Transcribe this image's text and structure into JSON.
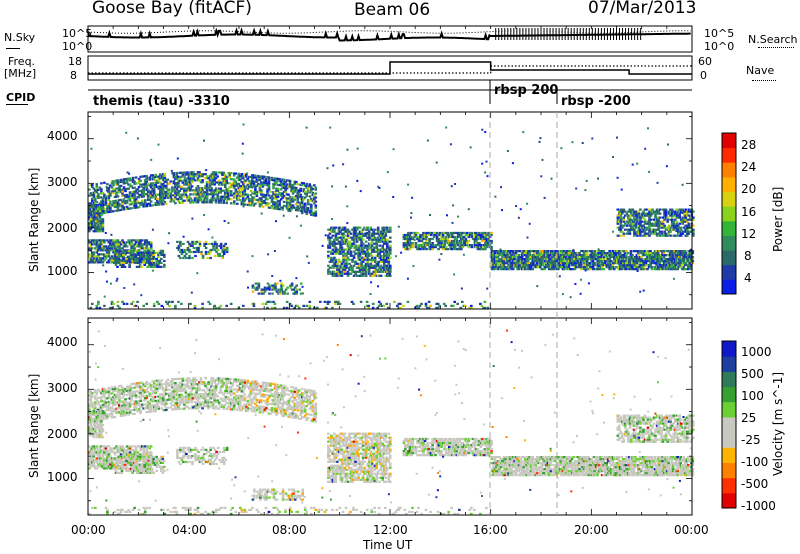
{
  "header": {
    "left": "Goose Bay (fitACF)",
    "center": "Beam 06",
    "right": "07/Mar/2013"
  },
  "top_panels": {
    "nsky_label": "N.Sky",
    "nsky_ticks": [
      "10^5",
      "10^0"
    ],
    "nsearch_label": "N.Search",
    "nsearch_ticks": [
      "10^5",
      "10^0"
    ],
    "freq_label": "Freq.",
    "freq_unit": "[MHz]",
    "freq_ticks": [
      "18",
      "8"
    ],
    "nave_label": "Nave",
    "nave_ticks": [
      "60",
      "0"
    ],
    "cpid_label": "CPID",
    "cpid_segments": [
      "themis (tau) -3310",
      "rbsp 200",
      "rbsp -200"
    ]
  },
  "colors": {
    "power_scale": [
      "#0a1ee6",
      "#1f3ba8",
      "#2c6a6a",
      "#2f8c5c",
      "#33b53a",
      "#8ad21c",
      "#d7d20f",
      "#ffb000",
      "#ff8000",
      "#ff2a00",
      "#e00000"
    ],
    "velocity_scale": [
      "#1018c8",
      "#1f3fa0",
      "#2f7a5a",
      "#37a032",
      "#6ccf34",
      "#c8c8c0",
      "#c8c8c0",
      "#ffb400",
      "#ff8000",
      "#ff3000",
      "#e00000"
    ]
  },
  "chart_data": [
    {
      "type": "heatmap",
      "ylabel": "Slant Range [km]",
      "xlim": [
        "00:00",
        "24:00"
      ],
      "ylim": [
        180,
        4600
      ],
      "y_ticks": [
        "1000",
        "2000",
        "3000",
        "4000"
      ],
      "x_ticks": [
        "00:00",
        "04:00",
        "08:00",
        "12:00",
        "16:00",
        "20:00",
        "00:00"
      ],
      "colorbar": {
        "label": "Power [dB]",
        "ticks": [
          "4",
          "8",
          "12",
          "16",
          "20",
          "24",
          "28"
        ],
        "range": [
          0,
          30
        ]
      }
    },
    {
      "type": "heatmap",
      "ylabel": "Slant Range [km]",
      "xlabel": "Time UT",
      "xlim": [
        "00:00",
        "24:00"
      ],
      "ylim": [
        180,
        4600
      ],
      "y_ticks": [
        "1000",
        "2000",
        "3000",
        "4000"
      ],
      "x_ticks": [
        "00:00",
        "04:00",
        "08:00",
        "12:00",
        "16:00",
        "20:00",
        "00:00"
      ],
      "colorbar": {
        "label": "Velocity [m s^-1]",
        "ticks": [
          "1000",
          "500",
          "100",
          "25",
          "-25",
          "-100",
          "-500",
          "-1000"
        ]
      }
    }
  ]
}
